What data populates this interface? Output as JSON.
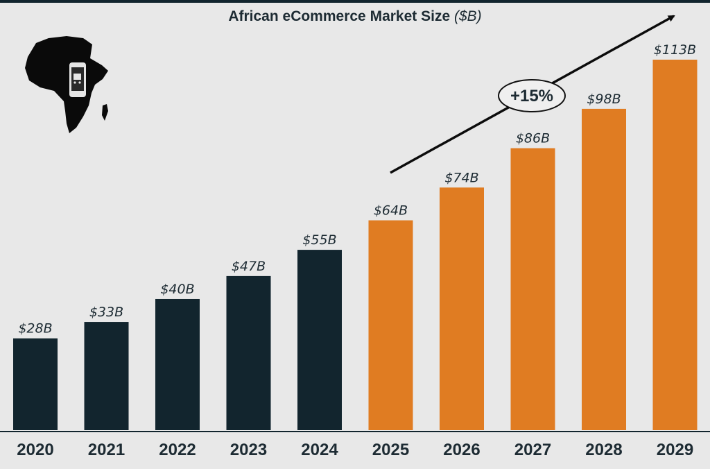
{
  "header": {
    "title": "African eCommerce Market Size",
    "unit": "($B)"
  },
  "annotation": {
    "growth_label": "+15%"
  },
  "icons": {
    "map": "africa-map-icon",
    "device": "smartphone-cart-icon"
  },
  "colors": {
    "historical": "#12252e",
    "forecast": "#e07c22",
    "background": "#e8e8e8",
    "text": "#1d2b33"
  },
  "chart_data": {
    "type": "bar",
    "title": "African eCommerce Market Size ($B)",
    "xlabel": "",
    "ylabel": "",
    "ylim": [
      0,
      113
    ],
    "grid": false,
    "categories": [
      "2020",
      "2021",
      "2022",
      "2023",
      "2024",
      "2025",
      "2026",
      "2027",
      "2028",
      "2029"
    ],
    "values": [
      28,
      33,
      40,
      47,
      55,
      64,
      74,
      86,
      98,
      113
    ],
    "data_labels": [
      "$28B",
      "$33B",
      "$40B",
      "$47B",
      "$55B",
      "$64B",
      "$74B",
      "$86B",
      "$98B",
      "$113B"
    ],
    "forecast_from": "2025"
  }
}
